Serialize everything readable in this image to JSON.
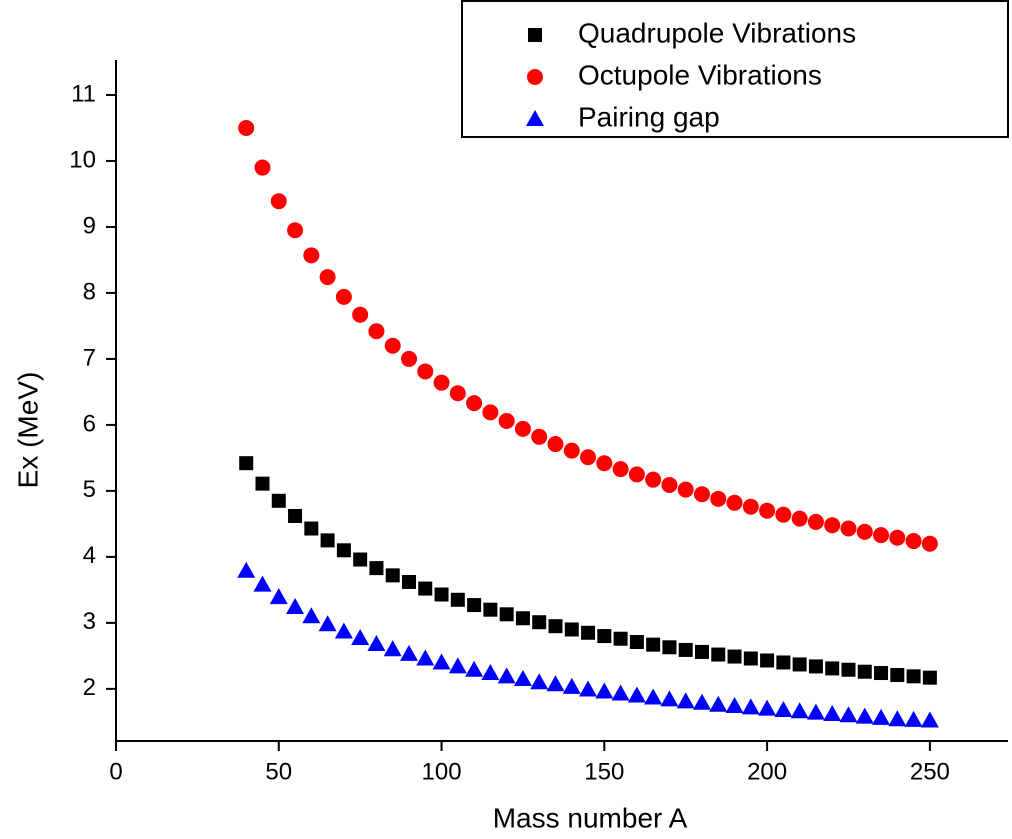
{
  "chart_data": {
    "type": "scatter",
    "x_label": "Mass number A",
    "y_label": "Ex (MeV)",
    "xlim": [
      0,
      274
    ],
    "ylim": [
      1.21,
      11.53
    ],
    "xticks": [
      0,
      50,
      100,
      150,
      200,
      250
    ],
    "yticks": [
      2,
      3,
      4,
      5,
      6,
      7,
      8,
      9,
      10,
      11
    ],
    "legend": "top-right",
    "x": [
      40,
      45,
      50,
      55,
      60,
      65,
      70,
      75,
      80,
      85,
      90,
      95,
      100,
      105,
      110,
      115,
      120,
      125,
      130,
      135,
      140,
      145,
      150,
      155,
      160,
      165,
      170,
      175,
      180,
      185,
      190,
      195,
      200,
      205,
      210,
      215,
      220,
      225,
      230,
      235,
      240,
      245,
      250
    ],
    "series": [
      {
        "name": "Quadrupole Vibrations",
        "color": "#000000",
        "marker": "square",
        "values": [
          5.42,
          5.11,
          4.85,
          4.62,
          4.43,
          4.25,
          4.1,
          3.96,
          3.83,
          3.72,
          3.62,
          3.52,
          3.43,
          3.35,
          3.27,
          3.2,
          3.13,
          3.07,
          3.01,
          2.95,
          2.9,
          2.85,
          2.8,
          2.76,
          2.71,
          2.67,
          2.63,
          2.59,
          2.56,
          2.52,
          2.49,
          2.46,
          2.43,
          2.4,
          2.37,
          2.34,
          2.31,
          2.29,
          2.26,
          2.24,
          2.21,
          2.19,
          2.17
        ]
      },
      {
        "name": "Octupole Vibrations",
        "color": "#ff0000",
        "marker": "circle",
        "values": [
          10.5,
          9.9,
          9.39,
          8.95,
          8.57,
          8.24,
          7.94,
          7.67,
          7.42,
          7.2,
          7.0,
          6.81,
          6.64,
          6.48,
          6.33,
          6.19,
          6.06,
          5.94,
          5.82,
          5.71,
          5.61,
          5.51,
          5.42,
          5.33,
          5.25,
          5.17,
          5.09,
          5.02,
          4.95,
          4.88,
          4.82,
          4.76,
          4.7,
          4.64,
          4.58,
          4.53,
          4.48,
          4.43,
          4.38,
          4.33,
          4.29,
          4.24,
          4.2
        ]
      },
      {
        "name": "Pairing gap",
        "color": "#0000ff",
        "marker": "triangle",
        "values": [
          3.79,
          3.58,
          3.39,
          3.24,
          3.1,
          2.98,
          2.87,
          2.77,
          2.68,
          2.6,
          2.53,
          2.46,
          2.4,
          2.34,
          2.29,
          2.24,
          2.19,
          2.15,
          2.1,
          2.07,
          2.03,
          1.99,
          1.96,
          1.93,
          1.9,
          1.87,
          1.84,
          1.81,
          1.79,
          1.76,
          1.74,
          1.72,
          1.7,
          1.68,
          1.66,
          1.64,
          1.62,
          1.6,
          1.58,
          1.56,
          1.54,
          1.53,
          1.52
        ]
      }
    ]
  }
}
